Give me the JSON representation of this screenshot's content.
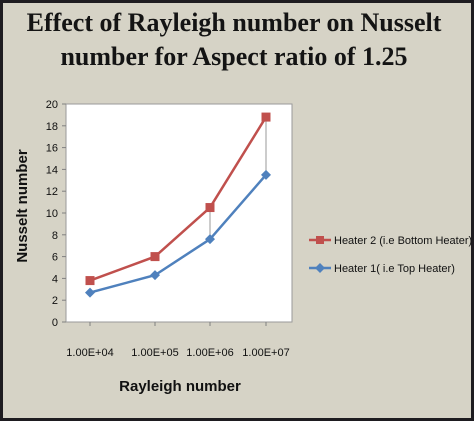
{
  "chart_data": {
    "type": "line",
    "title": "Effect  of Rayleigh number on Nusselt number for Aspect ratio of 1.25",
    "xlabel": "Rayleigh number",
    "ylabel": "Nusselt number",
    "categories": [
      "1.00E+04",
      "1.00E+05",
      "1.00E+06",
      "1.00E+07"
    ],
    "ylim": [
      0,
      20
    ],
    "yticks": [
      0,
      2,
      4,
      6,
      8,
      10,
      12,
      14,
      16,
      18,
      20
    ],
    "grid": false,
    "legend_position": "right",
    "series": [
      {
        "name": "Heater 2 (i.e Bottom Heater)",
        "values": [
          3.8,
          6.0,
          10.5,
          18.8
        ],
        "color": "#c0504d",
        "marker": "square"
      },
      {
        "name": "Heater 1( i.e Top Heater)",
        "values": [
          2.7,
          4.3,
          7.6,
          13.5
        ],
        "color": "#4f81bd",
        "marker": "diamond"
      }
    ]
  }
}
